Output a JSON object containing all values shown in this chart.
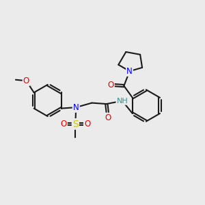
{
  "bg_color": "#ebebeb",
  "bond_color": "#1a1a1a",
  "bond_width": 1.5,
  "atom_colors": {
    "N": "#0000ee",
    "O": "#ee0000",
    "S": "#cccc00",
    "H": "#3a8f8f",
    "C": "#1a1a1a"
  },
  "font_size": 8.5
}
